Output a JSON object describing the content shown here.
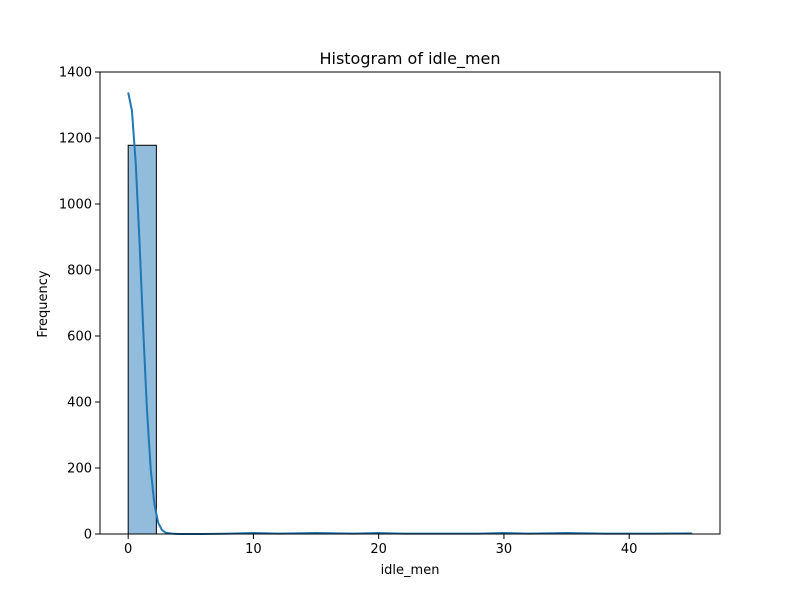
{
  "chart_data": {
    "type": "bar",
    "title": "Histogram of idle_men",
    "xlabel": "idle_men",
    "ylabel": "Frequency",
    "xlim": [
      -2.25,
      47.25
    ],
    "ylim": [
      0,
      1400
    ],
    "xticks": [
      0,
      10,
      20,
      30,
      40
    ],
    "yticks": [
      0,
      200,
      400,
      600,
      800,
      1000,
      1200,
      1400
    ],
    "bins": [
      {
        "x0": 0.0,
        "x1": 2.25,
        "count": 1178
      },
      {
        "x0": 2.25,
        "x1": 4.5,
        "count": 0
      },
      {
        "x0": 4.5,
        "x1": 6.75,
        "count": 0
      },
      {
        "x0": 6.75,
        "x1": 9.0,
        "count": 0
      },
      {
        "x0": 9.0,
        "x1": 11.25,
        "count": 1
      },
      {
        "x0": 11.25,
        "x1": 13.5,
        "count": 0
      },
      {
        "x0": 13.5,
        "x1": 15.75,
        "count": 1
      },
      {
        "x0": 15.75,
        "x1": 18.0,
        "count": 0
      },
      {
        "x0": 18.0,
        "x1": 20.25,
        "count": 1
      },
      {
        "x0": 20.25,
        "x1": 22.5,
        "count": 0
      },
      {
        "x0": 22.5,
        "x1": 24.75,
        "count": 0
      },
      {
        "x0": 24.75,
        "x1": 27.0,
        "count": 0
      },
      {
        "x0": 27.0,
        "x1": 29.25,
        "count": 0
      },
      {
        "x0": 29.25,
        "x1": 31.5,
        "count": 1
      },
      {
        "x0": 31.5,
        "x1": 33.75,
        "count": 0
      },
      {
        "x0": 33.75,
        "x1": 36.0,
        "count": 1
      },
      {
        "x0": 36.0,
        "x1": 38.25,
        "count": 0
      },
      {
        "x0": 38.25,
        "x1": 40.5,
        "count": 0
      },
      {
        "x0": 40.5,
        "x1": 42.75,
        "count": 0
      },
      {
        "x0": 42.75,
        "x1": 45.0,
        "count": 1
      }
    ],
    "kde": {
      "x": [
        0.0,
        0.3,
        0.6,
        0.9,
        1.2,
        1.5,
        1.8,
        2.1,
        2.4,
        2.7,
        3.0,
        3.5,
        4,
        6,
        8,
        10,
        12,
        15,
        18,
        20,
        22,
        25,
        28,
        30,
        32,
        35,
        38,
        40,
        42,
        45
      ],
      "y": [
        1338,
        1283,
        1125,
        890,
        620,
        376,
        196,
        88,
        34,
        12,
        4,
        1,
        0,
        0,
        1,
        3,
        1,
        3,
        1,
        3,
        1,
        1,
        1,
        3,
        1,
        3,
        1,
        1,
        1,
        2
      ]
    },
    "bar_color": "#92bcdb",
    "bar_edge_color": "#000000",
    "kde_color": "#1f77b4",
    "grid": false,
    "legend": false
  }
}
